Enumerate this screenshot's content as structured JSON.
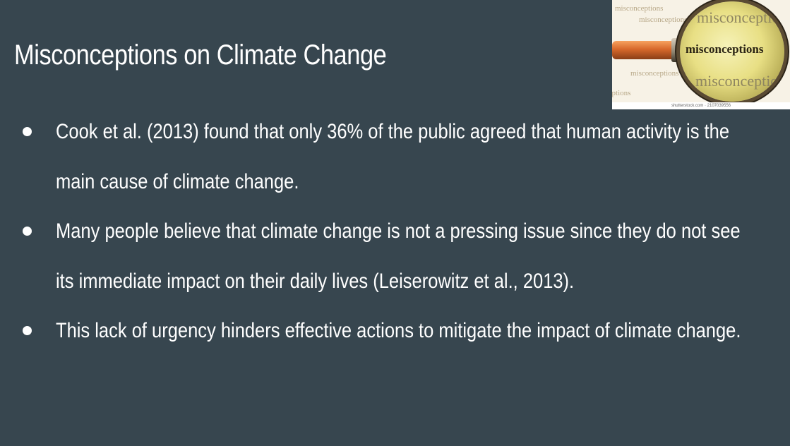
{
  "slide": {
    "title": "Misconceptions on Climate Change",
    "bullets": [
      "Cook et al. (2013) found that only 36% of the public agreed that human activity is the main cause of climate change.",
      "Many people believe that climate change is not a pressing issue since they do not see its immediate impact on their daily lives (Leiserowitz et al., 2013).",
      "This lack of urgency hinders effective actions to mitigate the impact of climate change."
    ]
  },
  "image": {
    "lens_word": "misconceptions",
    "background_words": [
      "misconceptions",
      "misconceptions",
      "misconceptions",
      "misconceptions",
      "misconceptions",
      "misconceptions"
    ],
    "credit": "shutterstock.com · 2107039556"
  }
}
